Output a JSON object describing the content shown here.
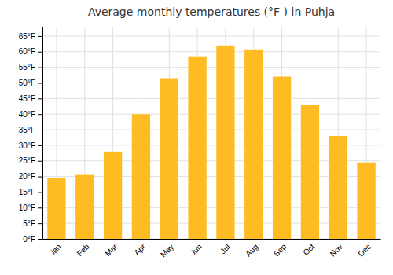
{
  "chart_data": {
    "type": "bar",
    "title": "Average monthly temperatures (°F ) in Puhja",
    "categories": [
      "Jan",
      "Feb",
      "Mar",
      "Apr",
      "May",
      "Jun",
      "Jul",
      "Aug",
      "Sep",
      "Oct",
      "Nov",
      "Dec"
    ],
    "values": [
      19.5,
      20.5,
      28,
      40,
      51.5,
      58.5,
      62,
      60.5,
      52,
      43,
      33,
      24.5
    ],
    "color": "#FFBB22",
    "ylim": [
      0,
      68
    ],
    "yticks": [
      {
        "value": 0,
        "label": "0°F"
      },
      {
        "value": 5,
        "label": "5°F"
      },
      {
        "value": 10,
        "label": "10°F"
      },
      {
        "value": 15,
        "label": "15°F"
      },
      {
        "value": 20,
        "label": "20°F"
      },
      {
        "value": 25,
        "label": "25°F"
      },
      {
        "value": 30,
        "label": "30°F"
      },
      {
        "value": 35,
        "label": "35°F"
      },
      {
        "value": 40,
        "label": "40°F"
      },
      {
        "value": 45,
        "label": "45°F"
      },
      {
        "value": 50,
        "label": "50°F"
      },
      {
        "value": 55,
        "label": "55°F"
      },
      {
        "value": 60,
        "label": "60°F"
      },
      {
        "value": 65,
        "label": "65°F"
      }
    ],
    "grid": true
  }
}
